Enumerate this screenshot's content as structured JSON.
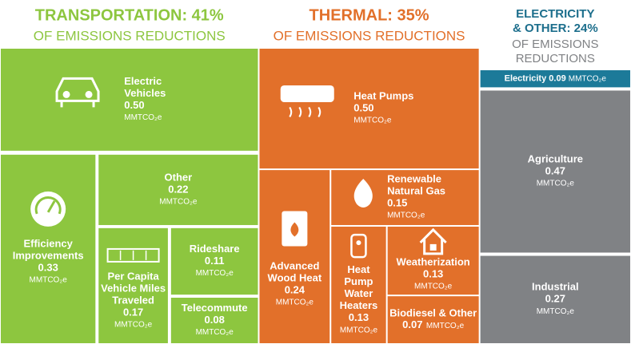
{
  "chart_data": {
    "type": "treemap",
    "unit": "MMTCO₂e",
    "groups": [
      {
        "label": [
          "TRANSPORTATION: 41%"
        ],
        "subtitle": [
          "OF EMISSIONS REDUCTIONS"
        ],
        "value": 41,
        "color": "#8dc63f",
        "title_color": "#8dc63f",
        "subtitle_color": "#8dc63f",
        "items": [
          {
            "label": [
              "Electric",
              "Vehicles"
            ],
            "value": 0.5,
            "value_label": "0.50"
          },
          {
            "label": [
              "Efficiency",
              "Improvements"
            ],
            "value": 0.33
          },
          {
            "label": [
              "Other"
            ],
            "value": 0.22
          },
          {
            "label": [
              "Per Capita",
              "Vehicle Miles",
              "Traveled"
            ],
            "value": 0.17
          },
          {
            "label": [
              "Rideshare"
            ],
            "value": 0.11
          },
          {
            "label": [
              "Telecommute"
            ],
            "value": 0.08
          }
        ]
      },
      {
        "label": [
          "THERMAL: 35%"
        ],
        "subtitle": [
          "OF EMISSIONS REDUCTIONS"
        ],
        "value": 35,
        "color": "#e2702a",
        "title_color": "#e2702a",
        "subtitle_color": "#e2702a",
        "items": [
          {
            "label": [
              "Heat Pumps"
            ],
            "value": 0.5,
            "value_label": "0.50"
          },
          {
            "label": [
              "Advanced",
              "Wood Heat"
            ],
            "value": 0.24
          },
          {
            "label": [
              "Renewable",
              "Natural Gas"
            ],
            "value": 0.15
          },
          {
            "label": [
              "Heat",
              "Pump",
              "Water",
              "Heaters"
            ],
            "value": 0.13
          },
          {
            "label": [
              "Weatherization"
            ],
            "value": 0.13
          },
          {
            "label": [
              "Biodiesel & Other"
            ],
            "value": 0.07
          }
        ]
      },
      {
        "label": [
          "ELECTRICITY",
          "& OTHER: 24%"
        ],
        "subtitle": [
          "OF EMISSIONS",
          "REDUCTIONS"
        ],
        "value": 24,
        "color": "#808285",
        "title_color": "#1c6e8c",
        "subtitle_color": "#808285",
        "items": [
          {
            "label": [
              "Electricity"
            ],
            "value": 0.09,
            "color": "#1c7a99"
          },
          {
            "label": [
              "Agriculture"
            ],
            "value": 0.47
          },
          {
            "label": [
              "Industrial"
            ],
            "value": 0.27
          }
        ]
      }
    ]
  }
}
